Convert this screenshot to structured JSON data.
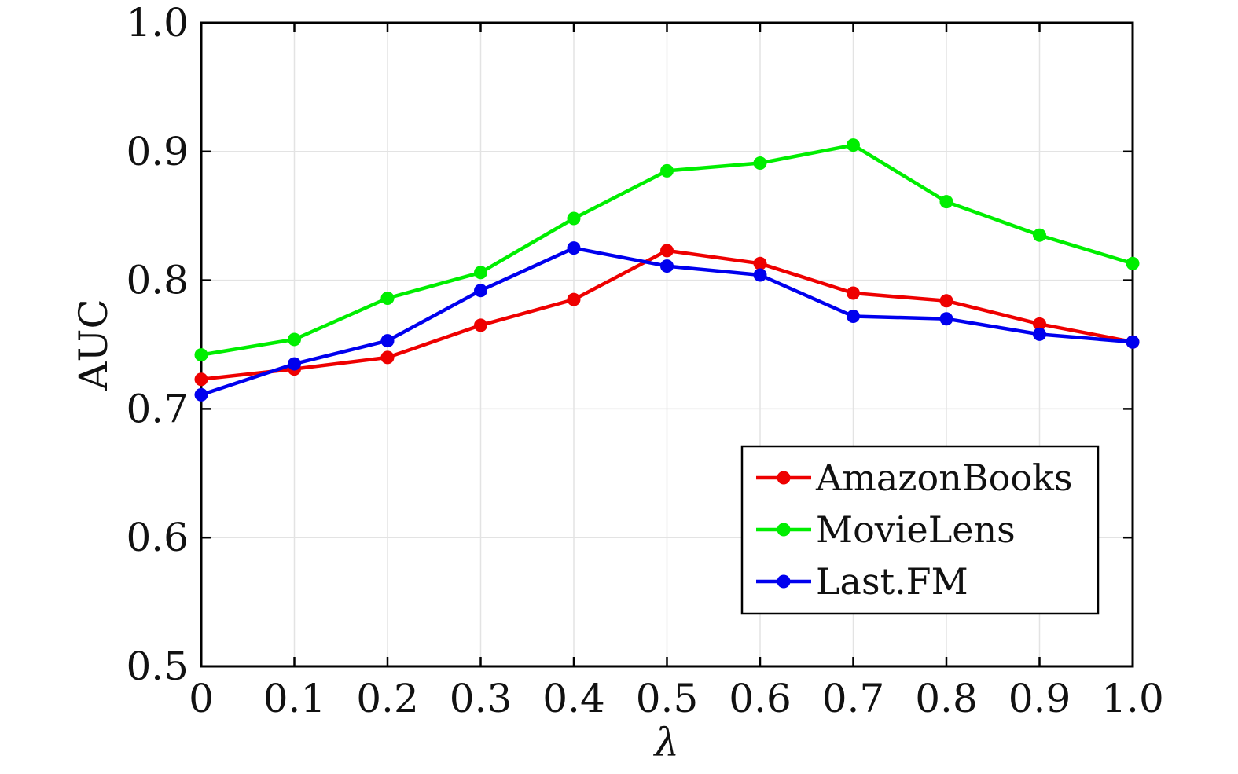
{
  "chart_data": {
    "type": "line",
    "xlabel": "λ",
    "ylabel": "AUC",
    "x": [
      0,
      0.1,
      0.2,
      0.3,
      0.4,
      0.5,
      0.6,
      0.7,
      0.8,
      0.9,
      1.0
    ],
    "xticks": [
      "0",
      "0.1",
      "0.2",
      "0.3",
      "0.4",
      "0.5",
      "0.6",
      "0.7",
      "0.8",
      "0.9",
      "1.0"
    ],
    "yticks": [
      "0.5",
      "0.6",
      "0.7",
      "0.8",
      "0.9",
      "1.0"
    ],
    "xlim": [
      0,
      1.0
    ],
    "ylim": [
      0.5,
      1.0
    ],
    "grid": true,
    "legend_position": "bottom-right",
    "series": [
      {
        "name": "AmazonBooks",
        "color": "#ee0000",
        "values": [
          0.723,
          0.731,
          0.74,
          0.765,
          0.785,
          0.823,
          0.813,
          0.79,
          0.784,
          0.766,
          0.752
        ]
      },
      {
        "name": "MovieLens",
        "color": "#00ee00",
        "values": [
          0.742,
          0.754,
          0.786,
          0.806,
          0.848,
          0.885,
          0.891,
          0.905,
          0.861,
          0.835,
          0.813
        ]
      },
      {
        "name": "Last.FM",
        "color": "#0000ee",
        "values": [
          0.711,
          0.735,
          0.753,
          0.792,
          0.825,
          0.811,
          0.804,
          0.772,
          0.77,
          0.758,
          0.752
        ]
      }
    ]
  }
}
